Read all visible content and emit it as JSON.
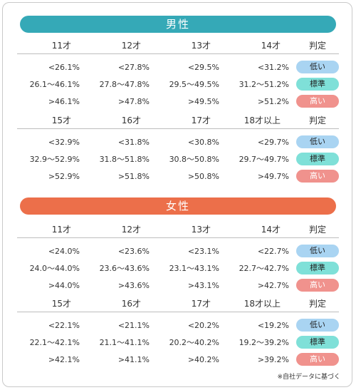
{
  "male": {
    "title": "男性",
    "color": "#35a9b7",
    "tables": [
      {
        "headers": [
          "11才",
          "12才",
          "13才",
          "14才"
        ],
        "rows": [
          [
            "<26.1%",
            "<27.8%",
            "<29.5%",
            "<31.2%"
          ],
          [
            "26.1〜46.1%",
            "27.8〜47.8%",
            "29.5〜49.5%",
            "31.2〜51.2%"
          ],
          [
            ">46.1%",
            ">47.8%",
            ">49.5%",
            ">51.2%"
          ]
        ]
      },
      {
        "headers": [
          "15才",
          "16才",
          "17才",
          "18才以上"
        ],
        "rows": [
          [
            "<32.9%",
            "<31.8%",
            "<30.8%",
            "<29.7%"
          ],
          [
            "32.9〜52.9%",
            "31.8〜51.8%",
            "30.8〜50.8%",
            "29.7〜49.7%"
          ],
          [
            ">52.9%",
            ">51.8%",
            ">50.8%",
            ">49.7%"
          ]
        ]
      }
    ]
  },
  "female": {
    "title": "女性",
    "color": "#ec6f4a",
    "tables": [
      {
        "headers": [
          "11才",
          "12才",
          "13才",
          "14才"
        ],
        "rows": [
          [
            "<24.0%",
            "<23.6%",
            "<23.1%",
            "<22.7%"
          ],
          [
            "24.0〜44.0%",
            "23.6〜43.6%",
            "23.1〜43.1%",
            "22.7〜42.7%"
          ],
          [
            ">44.0%",
            ">43.6%",
            ">43.1%",
            ">42.7%"
          ]
        ]
      },
      {
        "headers": [
          "15才",
          "16才",
          "17才",
          "18才以上"
        ],
        "rows": [
          [
            "<22.1%",
            "<21.1%",
            "<20.2%",
            "<19.2%"
          ],
          [
            "22.1〜42.1%",
            "21.1〜41.1%",
            "20.2〜40.2%",
            "19.2〜39.2%"
          ],
          [
            ">42.1%",
            ">41.1%",
            ">40.2%",
            ">39.2%"
          ]
        ]
      }
    ]
  },
  "judge_header": "判定",
  "judgments": [
    "低い",
    "標準",
    "高い"
  ],
  "judgment_colors": [
    "#a9d4f2",
    "#7fe0d8",
    "#f0928d"
  ],
  "footnote": "※自社データに基づく"
}
